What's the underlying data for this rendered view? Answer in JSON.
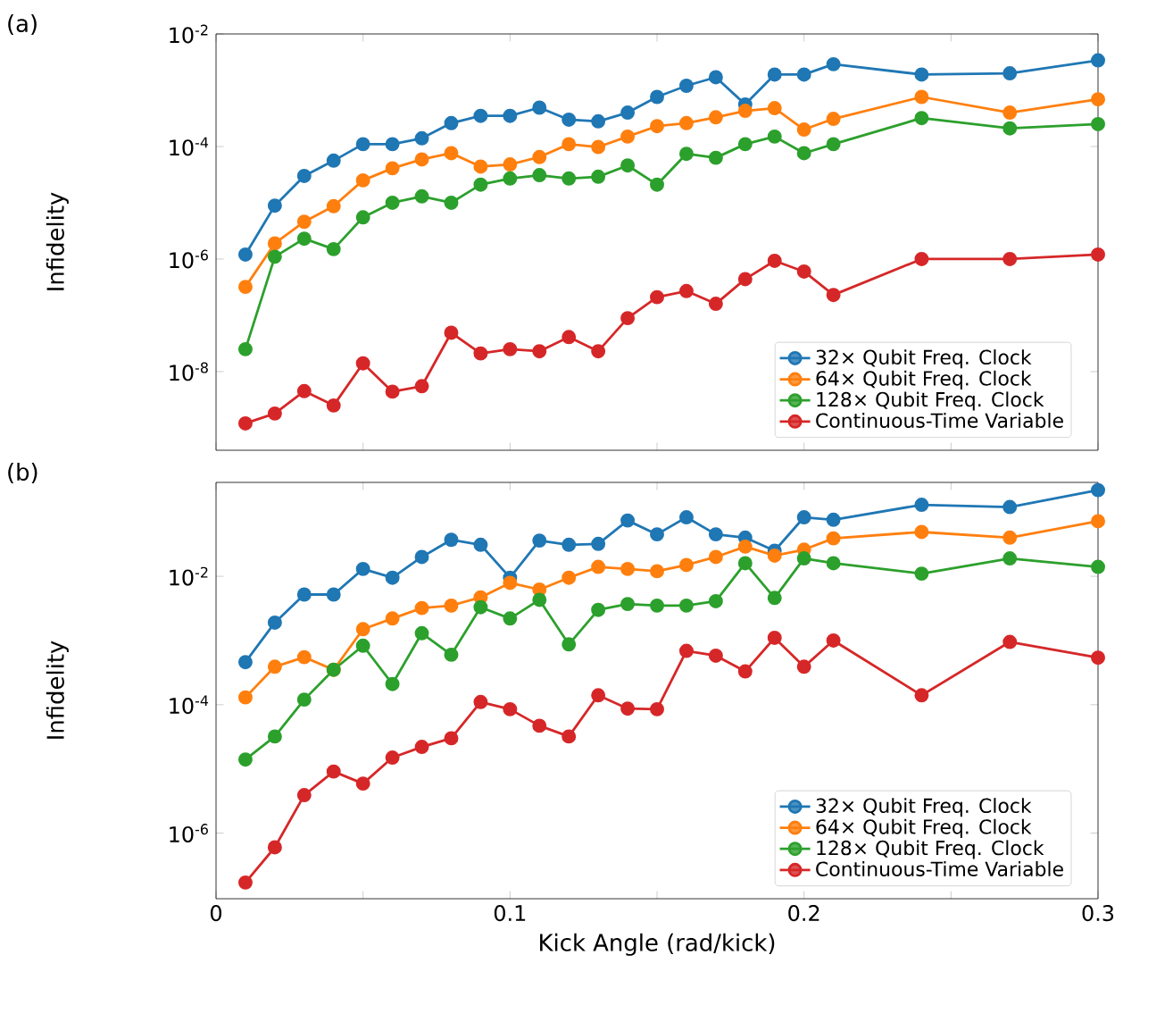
{
  "chart_data": [
    {
      "type": "line",
      "annotations": [
        "(a)"
      ],
      "ylabel": "Infidelity",
      "log": "y",
      "marker": "circle",
      "line_style": "solid",
      "legend": "bottom right",
      "tick_labels": "y",
      "xlim": [
        0,
        0.3
      ],
      "xticks": [
        0,
        {
          "value": 0.05,
          "label": null
        },
        0.1,
        {
          "value": 0.15,
          "label": null
        },
        0.2,
        {
          "value": 0.25,
          "label": null
        },
        0.3
      ],
      "ylim": [
        4e-10,
        0.01
      ],
      "yticks": [
        {
          "value": 1e-08,
          "label": "10$^{-8}$"
        },
        {
          "value": 1e-06,
          "label": "10$^{-6}$"
        },
        {
          "value": 0.0001,
          "label": "10$^{-4}$"
        },
        {
          "value": 0.01,
          "label": "10$^{-2}$"
        }
      ],
      "x": [
        0.01,
        0.02,
        0.03,
        0.04,
        0.05,
        0.06,
        0.07,
        0.08,
        0.09,
        0.1,
        0.11,
        0.12,
        0.13,
        0.14,
        0.15,
        0.16,
        0.17,
        0.18,
        0.19,
        0.2,
        0.21,
        0.24,
        0.27,
        0.3
      ],
      "series": [
        {
          "name": "32× Qubit Freq. Clock",
          "color": "#1f77b4",
          "values": [
            1.2e-06,
            8.9e-06,
            3e-05,
            5.6e-05,
            0.00011,
            0.00011,
            0.00014,
            0.00026,
            0.00035,
            0.00035,
            0.00049,
            0.0003,
            0.00028,
            0.0004,
            0.00076,
            0.0012,
            0.0017,
            0.00056,
            0.0019,
            0.0019,
            0.0029,
            0.0019,
            0.002,
            0.0034
          ]
        },
        {
          "name": "64× Qubit Freq. Clock",
          "color": "#ff7f0e",
          "values": [
            3.2e-07,
            1.9e-06,
            4.6e-06,
            8.7e-06,
            2.5e-05,
            4.1e-05,
            5.9e-05,
            7.6e-05,
            4.4e-05,
            4.8e-05,
            6.5e-05,
            0.00011,
            9.8e-05,
            0.00015,
            0.00023,
            0.00026,
            0.00033,
            0.00043,
            0.00048,
            0.0002,
            0.00031,
            0.00076,
            0.0004,
            0.00069
          ]
        },
        {
          "name": "128× Qubit Freq. Clock",
          "color": "#2ca02c",
          "values": [
            2.5e-08,
            1.1e-06,
            2.3e-06,
            1.5e-06,
            5.5e-06,
            1e-05,
            1.3e-05,
            1e-05,
            2.1e-05,
            2.7e-05,
            3.1e-05,
            2.7e-05,
            2.9e-05,
            4.6e-05,
            2.1e-05,
            7.4e-05,
            6.3e-05,
            0.00011,
            0.00015,
            7.6e-05,
            0.00011,
            0.00032,
            0.00021,
            0.00025
          ]
        },
        {
          "name": "Continuous-Time Variable",
          "color": "#d62728",
          "values": [
            1.2e-09,
            1.8e-09,
            4.5e-09,
            2.5e-09,
            1.4e-08,
            4.4e-09,
            5.5e-09,
            4.9e-08,
            2.1e-08,
            2.5e-08,
            2.3e-08,
            4.1e-08,
            2.3e-08,
            8.9e-08,
            2.1e-07,
            2.7e-07,
            1.6e-07,
            4.4e-07,
            9.3e-07,
            6e-07,
            2.3e-07,
            1e-06,
            1e-06,
            1.2e-06
          ]
        }
      ]
    },
    {
      "type": "line",
      "annotations": [
        "(b)"
      ],
      "ylabel": "Infidelity",
      "xlabel": "Kick Angle (rad/kick)",
      "log": "y",
      "marker": "circle",
      "line_style": "solid",
      "legend": "bottom right",
      "xlim": [
        0,
        0.3
      ],
      "xticks": [
        0,
        {
          "value": 0.05,
          "label": null
        },
        0.1,
        {
          "value": 0.15,
          "label": null
        },
        0.2,
        {
          "value": 0.25,
          "label": null
        },
        0.3
      ],
      "ylim": [
        9.5e-08,
        0.29
      ],
      "yticks": [
        {
          "value": 1e-06,
          "label": "10$^{-6}$"
        },
        {
          "value": 0.0001,
          "label": "10$^{-4}$"
        },
        {
          "value": 0.01,
          "label": "10$^{-2}$"
        }
      ],
      "x": [
        0.01,
        0.02,
        0.03,
        0.04,
        0.05,
        0.06,
        0.07,
        0.08,
        0.09,
        0.1,
        0.11,
        0.12,
        0.13,
        0.14,
        0.15,
        0.16,
        0.17,
        0.18,
        0.19,
        0.2,
        0.21,
        0.24,
        0.27,
        0.3
      ],
      "series": [
        {
          "name": "32× Qubit Freq. Clock",
          "color": "#1f77b4",
          "values": [
            0.00046,
            0.0019,
            0.0052,
            0.0052,
            0.013,
            0.0095,
            0.02,
            0.037,
            0.031,
            0.0095,
            0.036,
            0.031,
            0.032,
            0.074,
            0.045,
            0.083,
            0.045,
            0.04,
            0.025,
            0.083,
            0.076,
            0.13,
            0.12,
            0.22
          ]
        },
        {
          "name": "64× Qubit Freq. Clock",
          "color": "#ff7f0e",
          "values": [
            0.00013,
            0.00039,
            0.00055,
            0.00035,
            0.0015,
            0.0022,
            0.0032,
            0.0035,
            0.0047,
            0.0079,
            0.0062,
            0.0095,
            0.014,
            0.013,
            0.012,
            0.015,
            0.02,
            0.029,
            0.021,
            0.026,
            0.039,
            0.049,
            0.04,
            0.072
          ]
        },
        {
          "name": "128× Qubit Freq. Clock",
          "color": "#2ca02c",
          "values": [
            1.4e-05,
            3.2e-05,
            0.00012,
            0.00035,
            0.00083,
            0.00021,
            0.0013,
            0.0006,
            0.0033,
            0.0022,
            0.0043,
            0.00087,
            0.003,
            0.0037,
            0.0035,
            0.0035,
            0.0041,
            0.016,
            0.0046,
            0.019,
            0.016,
            0.011,
            0.019,
            0.014
          ]
        },
        {
          "name": "Continuous-Time Variable",
          "color": "#d62728",
          "values": [
            1.7e-07,
            6e-07,
            3.9e-06,
            9.1e-06,
            5.9e-06,
            1.5e-05,
            2.2e-05,
            3e-05,
            0.00011,
            8.5e-05,
            4.7e-05,
            3.2e-05,
            0.00014,
            8.7e-05,
            8.5e-05,
            0.00069,
            0.00058,
            0.00033,
            0.0011,
            0.00039,
            0.001,
            0.00014,
            0.00095,
            0.00054
          ]
        }
      ]
    }
  ]
}
